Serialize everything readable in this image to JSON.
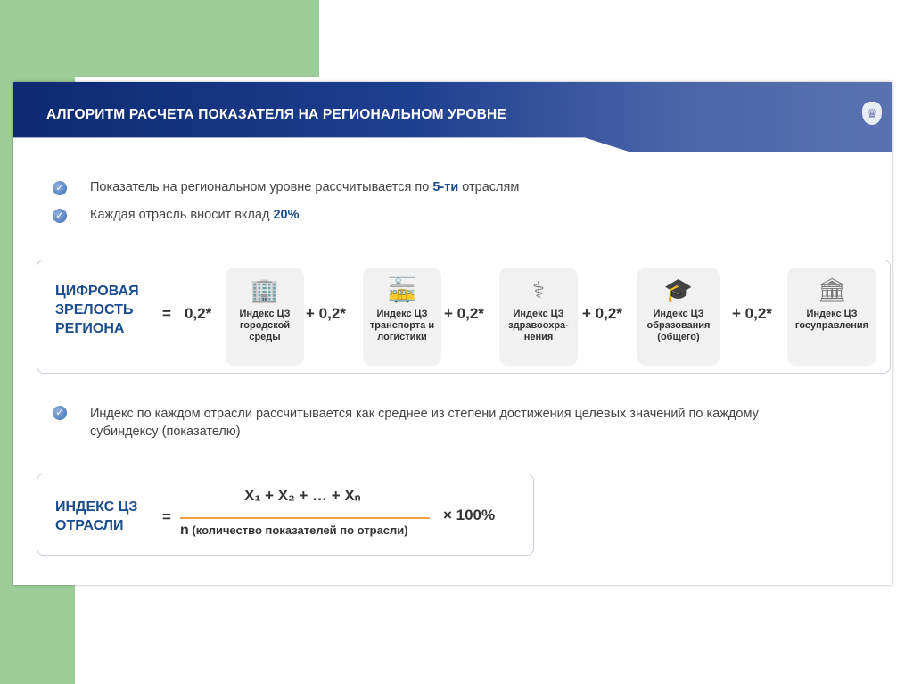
{
  "header": {
    "title": "АЛГОРИТМ РАСЧЕТА ПОКАЗАТЕЛЯ НА РЕГИОНАЛЬНОМ УРОВНЕ",
    "emblem_icon": "russian-coat-of-arms-icon"
  },
  "bullets": [
    {
      "pre": "Показатель на региональном уровне рассчитывается по ",
      "hl": "5-ти",
      "post": " отраслям"
    },
    {
      "pre": "Каждая отрасль вносит вклад ",
      "hl": "20%",
      "post": ""
    },
    {
      "pre": "Индекс по каждом отрасли рассчитывается как среднее из степени достижения целевых значений по каждому субиндексу (показателю)",
      "hl": "",
      "post": ""
    }
  ],
  "formula1": {
    "label": [
      "ЦИФРОВАЯ",
      "ЗРЕЛОСТЬ",
      "РЕГИОНА"
    ],
    "equals": "=",
    "coefs": [
      "0,2*",
      "+ 0,2*",
      "+ 0,2*",
      "+ 0,2*",
      "+ 0,2*"
    ],
    "terms": [
      {
        "icon": "city-buildings-icon",
        "glyph": "🏢",
        "text": "Индекс ЦЗ городской среды"
      },
      {
        "icon": "tram-icon",
        "glyph": "🚋",
        "text": "Индекс ЦЗ транспорта и логистики"
      },
      {
        "icon": "caduceus-icon",
        "glyph": "⚕",
        "text": "Индекс ЦЗ здравоохра-нения"
      },
      {
        "icon": "graduate-icon",
        "glyph": "🎓",
        "text": "Индекс ЦЗ образования (общего)"
      },
      {
        "icon": "kremlin-tower-icon",
        "glyph": "🏛",
        "text": "Индекс ЦЗ госуправления"
      }
    ]
  },
  "formula2": {
    "label": [
      "ИНДЕКС ЦЗ",
      "ОТРАСЛИ"
    ],
    "equals": "=",
    "numerator": "X₁ + X₂ + … + Xₙ",
    "denominator_n": "n",
    "denominator_text": "(количество показателей по отрасли)",
    "multiplier": "× 100%"
  },
  "colors": {
    "accent": "#1b4c8c",
    "header": "#1d3f8f",
    "fraction_line": "#f0a24a",
    "background_green": "#9ccc98"
  }
}
